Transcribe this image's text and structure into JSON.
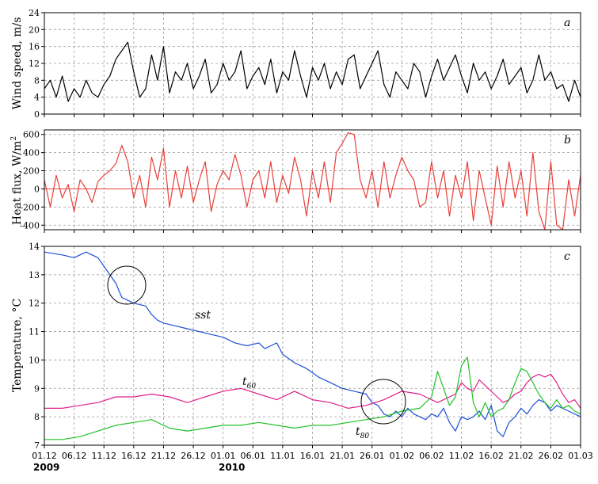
{
  "chart_data": [
    {
      "type": "line",
      "panel_letter": "a",
      "ylabel": "Wind speed, m/s",
      "ylim": [
        0,
        24
      ],
      "yticks": [
        "0",
        "4",
        "8",
        "12",
        "16",
        "20",
        "24"
      ],
      "grid": true,
      "series": [
        {
          "color": "#000000",
          "x": [
            0,
            1,
            2,
            3,
            4,
            5,
            6,
            7,
            8,
            9,
            10,
            11,
            12,
            13,
            14,
            15,
            16,
            17,
            18,
            19,
            20,
            21,
            22,
            23,
            24,
            25,
            26,
            27,
            28,
            29,
            30,
            31,
            32,
            33,
            34,
            35,
            36,
            37,
            38,
            39,
            40,
            41,
            42,
            43,
            44,
            45,
            46,
            47,
            48,
            49,
            50,
            51,
            52,
            53,
            54,
            55,
            56,
            57,
            58,
            59,
            60,
            61,
            62,
            63,
            64,
            65,
            66,
            67,
            68,
            69,
            70,
            71,
            72,
            73,
            74,
            75,
            76,
            77,
            78,
            79,
            80,
            81,
            82,
            83,
            84,
            85,
            86,
            87,
            88,
            89,
            90
          ],
          "values": [
            6,
            8,
            4,
            9,
            3,
            6,
            4,
            8,
            5,
            4,
            7,
            9,
            13,
            15,
            17,
            10,
            4,
            6,
            14,
            8,
            16,
            5,
            10,
            8,
            12,
            6,
            9,
            13,
            5,
            7,
            12,
            8,
            10,
            15,
            6,
            9,
            11,
            7,
            13,
            5,
            10,
            8,
            15,
            9,
            4,
            11,
            8,
            12,
            6,
            10,
            7,
            13,
            14,
            6,
            9,
            12,
            15,
            7,
            4,
            10,
            8,
            6,
            12,
            10,
            4,
            9,
            13,
            8,
            11,
            14,
            9,
            5,
            12,
            8,
            10,
            6,
            9,
            13,
            7,
            9,
            11,
            5,
            8,
            14,
            8,
            10,
            6,
            7,
            3,
            8,
            4
          ]
        }
      ]
    },
    {
      "type": "line",
      "panel_letter": "b",
      "ylabel": "Heat flux, W/m",
      "ylabel_sup": "2",
      "ylim": [
        -450,
        650
      ],
      "yticks": [
        "-400",
        "-200",
        "0",
        "200",
        "400",
        "600"
      ],
      "grid": true,
      "series": [
        {
          "color": "#e8403a",
          "x": [
            0,
            1,
            2,
            3,
            4,
            5,
            6,
            7,
            8,
            9,
            10,
            11,
            12,
            13,
            14,
            15,
            16,
            17,
            18,
            19,
            20,
            21,
            22,
            23,
            24,
            25,
            26,
            27,
            28,
            29,
            30,
            31,
            32,
            33,
            34,
            35,
            36,
            37,
            38,
            39,
            40,
            41,
            42,
            43,
            44,
            45,
            46,
            47,
            48,
            49,
            50,
            51,
            52,
            53,
            54,
            55,
            56,
            57,
            58,
            59,
            60,
            61,
            62,
            63,
            64,
            65,
            66,
            67,
            68,
            69,
            70,
            71,
            72,
            73,
            74,
            75,
            76,
            77,
            78,
            79,
            80,
            81,
            82,
            83,
            84,
            85,
            86,
            87,
            88,
            89,
            90
          ],
          "values": [
            100,
            -200,
            150,
            -100,
            50,
            -250,
            100,
            0,
            -150,
            80,
            150,
            200,
            280,
            480,
            300,
            -100,
            150,
            -200,
            350,
            100,
            450,
            -200,
            200,
            -100,
            250,
            -150,
            100,
            300,
            -250,
            50,
            200,
            100,
            380,
            150,
            -200,
            100,
            200,
            -100,
            300,
            -150,
            150,
            -50,
            350,
            100,
            -300,
            200,
            -100,
            300,
            -150,
            400,
            500,
            620,
            600,
            100,
            -100,
            200,
            -200,
            300,
            -100,
            150,
            350,
            200,
            100,
            -200,
            -150,
            300,
            -100,
            200,
            -300,
            150,
            -100,
            300,
            -350,
            200,
            -100,
            -400,
            250,
            -200,
            300,
            -100,
            200,
            -300,
            400,
            -250,
            -450,
            300,
            -400,
            -450,
            100,
            -300,
            150
          ]
        }
      ]
    },
    {
      "type": "line",
      "panel_letter": "c",
      "ylabel": "Temperature, °C",
      "ylim": [
        7,
        14
      ],
      "yticks": [
        "7",
        "8",
        "9",
        "10",
        "11",
        "12",
        "13",
        "14"
      ],
      "grid": true,
      "xticks": [
        "01.12",
        "06.12",
        "11.12",
        "16.12",
        "21.12",
        "26.12",
        "01.01",
        "06.01",
        "11.01",
        "16.01",
        "21.01",
        "26.01",
        "01.02",
        "06.02",
        "11.02",
        "16.02",
        "21.02",
        "26.02",
        "01.03"
      ],
      "year_labels": [
        "2009",
        "2010"
      ],
      "annotations": [
        "sst",
        "t",
        "t"
      ],
      "annotation_subs": [
        "60",
        "80"
      ],
      "series": [
        {
          "color": "#1f4fd6",
          "x": [
            0,
            3,
            5,
            7,
            9,
            10,
            11,
            12,
            13,
            14,
            15,
            17,
            18,
            19,
            20,
            22,
            24,
            26,
            28,
            30,
            32,
            34,
            36,
            37,
            38,
            39,
            40,
            42,
            44,
            46,
            48,
            50,
            52,
            54,
            55,
            56,
            57,
            58,
            59,
            60,
            61,
            62,
            63,
            64,
            65,
            66,
            67,
            68,
            69,
            70,
            71,
            72,
            73,
            74,
            75,
            76,
            77,
            78,
            79,
            80,
            81,
            82,
            83,
            84,
            85,
            86,
            87,
            88,
            89,
            90
          ],
          "values": [
            13.8,
            13.7,
            13.6,
            13.8,
            13.6,
            13.3,
            13.0,
            12.7,
            12.2,
            12.1,
            12.0,
            11.9,
            11.6,
            11.4,
            11.3,
            11.2,
            11.1,
            11.0,
            10.9,
            10.8,
            10.6,
            10.5,
            10.6,
            10.4,
            10.5,
            10.6,
            10.2,
            9.9,
            9.7,
            9.4,
            9.2,
            9.0,
            8.9,
            8.8,
            8.5,
            8.4,
            8.1,
            8.0,
            8.2,
            8.0,
            8.3,
            8.1,
            8.0,
            7.9,
            8.1,
            8.0,
            8.3,
            7.8,
            7.5,
            8.0,
            7.9,
            8.0,
            8.2,
            7.9,
            8.4,
            7.5,
            7.3,
            7.8,
            8.0,
            8.3,
            8.1,
            8.4,
            8.6,
            8.5,
            8.2,
            8.4,
            8.3,
            8.2,
            8.1,
            8.0
          ]
        },
        {
          "color": "#e0208a",
          "x": [
            0,
            3,
            6,
            9,
            12,
            15,
            18,
            21,
            24,
            27,
            30,
            33,
            36,
            39,
            42,
            45,
            48,
            51,
            54,
            57,
            60,
            63,
            66,
            69,
            70,
            71,
            72,
            73,
            74,
            75,
            76,
            77,
            78,
            79,
            80,
            81,
            82,
            83,
            84,
            85,
            86,
            87,
            88,
            89,
            90
          ],
          "values": [
            8.3,
            8.3,
            8.4,
            8.5,
            8.7,
            8.7,
            8.8,
            8.7,
            8.5,
            8.7,
            8.9,
            9.0,
            8.8,
            8.6,
            8.9,
            8.6,
            8.5,
            8.3,
            8.4,
            8.6,
            8.9,
            8.8,
            8.5,
            8.8,
            9.2,
            9.0,
            8.9,
            9.3,
            9.1,
            8.9,
            8.7,
            8.5,
            8.6,
            8.8,
            8.9,
            9.2,
            9.4,
            9.5,
            9.4,
            9.5,
            9.2,
            8.8,
            8.5,
            8.6,
            8.3
          ]
        },
        {
          "color": "#22c12a",
          "x": [
            0,
            3,
            6,
            9,
            12,
            15,
            18,
            21,
            24,
            27,
            30,
            33,
            36,
            39,
            42,
            45,
            48,
            51,
            54,
            57,
            60,
            63,
            65,
            66,
            67,
            68,
            69,
            70,
            71,
            72,
            73,
            74,
            75,
            76,
            77,
            78,
            79,
            80,
            81,
            82,
            83,
            84,
            85,
            86,
            87,
            88,
            89,
            90
          ],
          "values": [
            7.2,
            7.2,
            7.3,
            7.5,
            7.7,
            7.8,
            7.9,
            7.6,
            7.5,
            7.6,
            7.7,
            7.7,
            7.8,
            7.7,
            7.6,
            7.7,
            7.7,
            7.8,
            7.9,
            8.0,
            8.2,
            8.3,
            8.7,
            9.6,
            9.0,
            8.4,
            8.7,
            9.8,
            10.1,
            8.5,
            8.0,
            8.5,
            8.0,
            8.2,
            8.3,
            8.6,
            9.2,
            9.7,
            9.6,
            9.2,
            8.8,
            8.5,
            8.3,
            8.6,
            8.3,
            8.4,
            8.2,
            8.1
          ]
        }
      ]
    }
  ]
}
